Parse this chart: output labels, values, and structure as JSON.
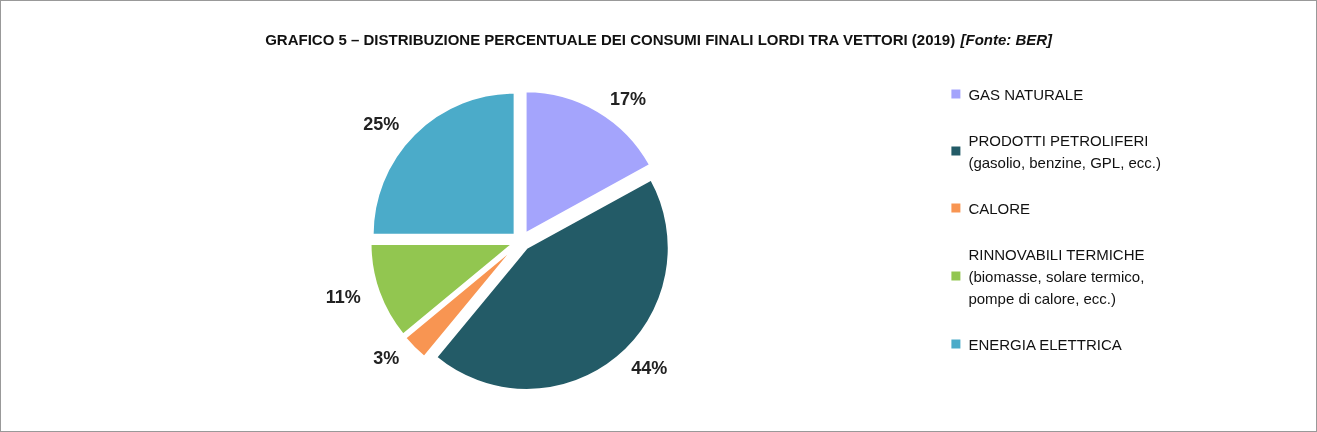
{
  "chart_data": {
    "type": "pie",
    "title": "GRAFICO 5 – DISTRIBUZIONE PERCENTUALE DEI CONSUMI FINALI LORDI TRA VETTORI (2019)",
    "annotations": [
      "[Fonte: BER]"
    ],
    "categories": [
      "GAS NATURALE",
      "PRODOTTI PETROLIFERI\n(gasolio, benzine, GPL, ecc.)",
      "CALORE",
      "RINNOVABILI TERMICHE\n(biomasse, solare termico,\npompe di calore, ecc.)",
      "ENERGIA ELETTRICA"
    ],
    "values": [
      17,
      44,
      3,
      11,
      25
    ],
    "colors": [
      "#a4a4fc",
      "#235b67",
      "#f89552",
      "#92c650",
      "#4babc9"
    ],
    "value_labels": [
      "17%",
      "44%",
      "3%",
      "11%",
      "25%"
    ],
    "legend": "right"
  }
}
